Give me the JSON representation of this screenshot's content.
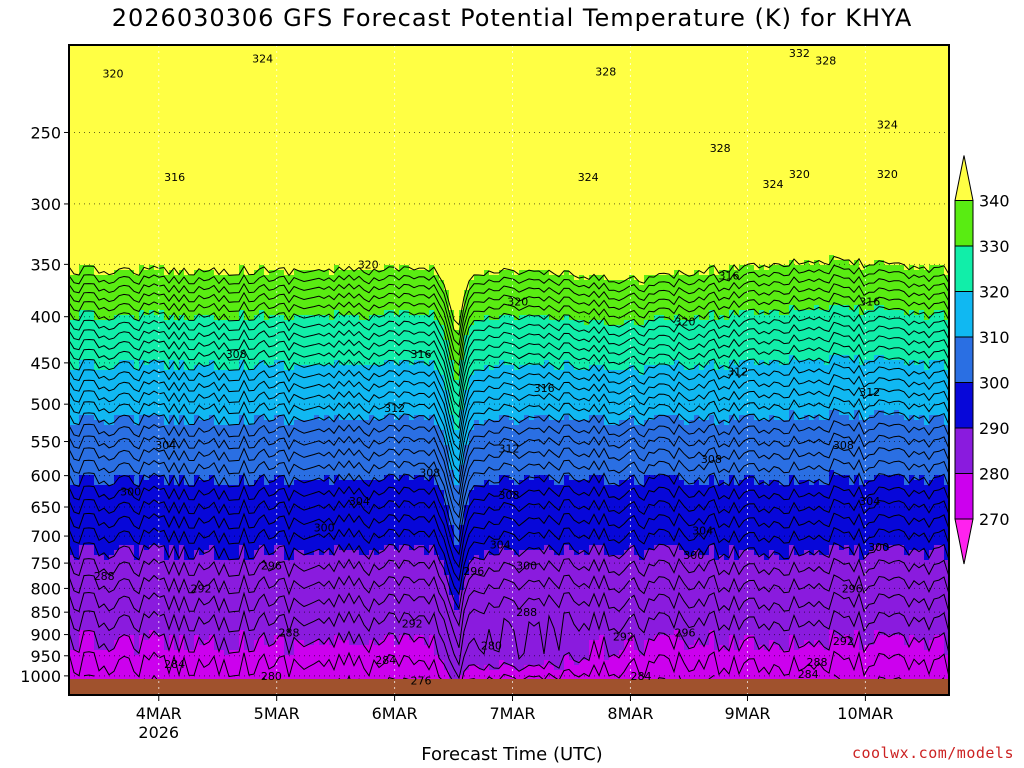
{
  "title": "2026030306 GFS Forecast Potential Temperature (K) for KHYA",
  "footer": {
    "xlabel": "Forecast Time (UTC)",
    "credit": "coolwx.com/models"
  },
  "chart_data": {
    "type": "contour",
    "title": "2026030306 GFS Forecast Potential Temperature (K) for KHYA",
    "xlabel": "Forecast Time (UTC)",
    "ylabel": "",
    "y_scale": "log-pressure (inverted)",
    "ylim": [
      1050,
      200
    ],
    "y_ticks": [
      250,
      300,
      350,
      400,
      450,
      500,
      550,
      600,
      650,
      700,
      750,
      800,
      850,
      900,
      950,
      1000
    ],
    "x_ticks": [
      {
        "label": "4MAR",
        "sub": "2026"
      },
      {
        "label": "5MAR",
        "sub": ""
      },
      {
        "label": "6MAR",
        "sub": ""
      },
      {
        "label": "7MAR",
        "sub": ""
      },
      {
        "label": "8MAR",
        "sub": ""
      },
      {
        "label": "9MAR",
        "sub": ""
      },
      {
        "label": "10MAR",
        "sub": ""
      }
    ],
    "grid": true,
    "colorbar": {
      "levels": [
        270,
        280,
        290,
        300,
        310,
        320,
        330,
        340
      ],
      "colors": [
        "#ff22ee",
        "#cc00ee",
        "#8a1bde",
        "#0707d9",
        "#2a6fe3",
        "#10b8f2",
        "#11eea9",
        "#59ec12",
        "#d9f10f",
        "#ffff44"
      ]
    },
    "contour_labels": [
      {
        "v": "320",
        "x": 0.05,
        "p": 215
      },
      {
        "v": "324",
        "x": 0.22,
        "p": 207
      },
      {
        "v": "328",
        "x": 0.61,
        "p": 214
      },
      {
        "v": "328",
        "x": 0.86,
        "p": 208
      },
      {
        "v": "332",
        "x": 0.83,
        "p": 204
      },
      {
        "v": "324",
        "x": 0.93,
        "p": 245
      },
      {
        "v": "328",
        "x": 0.74,
        "p": 260
      },
      {
        "v": "324",
        "x": 0.59,
        "p": 280
      },
      {
        "v": "324",
        "x": 0.8,
        "p": 285
      },
      {
        "v": "320",
        "x": 0.83,
        "p": 278
      },
      {
        "v": "320",
        "x": 0.93,
        "p": 278
      },
      {
        "v": "316",
        "x": 0.12,
        "p": 280
      },
      {
        "v": "320",
        "x": 0.34,
        "p": 350
      },
      {
        "v": "320",
        "x": 0.51,
        "p": 385
      },
      {
        "v": "320",
        "x": 0.7,
        "p": 405
      },
      {
        "v": "316",
        "x": 0.75,
        "p": 360
      },
      {
        "v": "316",
        "x": 0.91,
        "p": 385
      },
      {
        "v": "316",
        "x": 0.4,
        "p": 440
      },
      {
        "v": "316",
        "x": 0.54,
        "p": 480
      },
      {
        "v": "312",
        "x": 0.76,
        "p": 460
      },
      {
        "v": "312",
        "x": 0.91,
        "p": 485
      },
      {
        "v": "308",
        "x": 0.19,
        "p": 440
      },
      {
        "v": "312",
        "x": 0.37,
        "p": 505
      },
      {
        "v": "312",
        "x": 0.5,
        "p": 560
      },
      {
        "v": "308",
        "x": 0.88,
        "p": 555
      },
      {
        "v": "308",
        "x": 0.73,
        "p": 575
      },
      {
        "v": "304",
        "x": 0.11,
        "p": 555
      },
      {
        "v": "308",
        "x": 0.41,
        "p": 595
      },
      {
        "v": "308",
        "x": 0.5,
        "p": 630
      },
      {
        "v": "300",
        "x": 0.07,
        "p": 625
      },
      {
        "v": "304",
        "x": 0.33,
        "p": 640
      },
      {
        "v": "304",
        "x": 0.91,
        "p": 640
      },
      {
        "v": "304",
        "x": 0.72,
        "p": 690
      },
      {
        "v": "300",
        "x": 0.29,
        "p": 685
      },
      {
        "v": "304",
        "x": 0.49,
        "p": 715
      },
      {
        "v": "300",
        "x": 0.71,
        "p": 735
      },
      {
        "v": "300",
        "x": 0.92,
        "p": 720
      },
      {
        "v": "296",
        "x": 0.23,
        "p": 755
      },
      {
        "v": "296",
        "x": 0.46,
        "p": 765
      },
      {
        "v": "300",
        "x": 0.52,
        "p": 755
      },
      {
        "v": "288",
        "x": 0.04,
        "p": 775
      },
      {
        "v": "292",
        "x": 0.15,
        "p": 800
      },
      {
        "v": "296",
        "x": 0.89,
        "p": 800
      },
      {
        "v": "288",
        "x": 0.52,
        "p": 850
      },
      {
        "v": "292",
        "x": 0.39,
        "p": 875
      },
      {
        "v": "288",
        "x": 0.25,
        "p": 895
      },
      {
        "v": "292",
        "x": 0.63,
        "p": 905
      },
      {
        "v": "296",
        "x": 0.7,
        "p": 895
      },
      {
        "v": "292",
        "x": 0.88,
        "p": 915
      },
      {
        "v": "280",
        "x": 0.48,
        "p": 925
      },
      {
        "v": "284",
        "x": 0.12,
        "p": 970
      },
      {
        "v": "284",
        "x": 0.36,
        "p": 960
      },
      {
        "v": "288",
        "x": 0.85,
        "p": 965
      },
      {
        "v": "284",
        "x": 0.84,
        "p": 995
      },
      {
        "v": "280",
        "x": 0.23,
        "p": 1000
      },
      {
        "v": "276",
        "x": 0.4,
        "p": 1012
      },
      {
        "v": "284",
        "x": 0.65,
        "p": 1000
      }
    ]
  }
}
